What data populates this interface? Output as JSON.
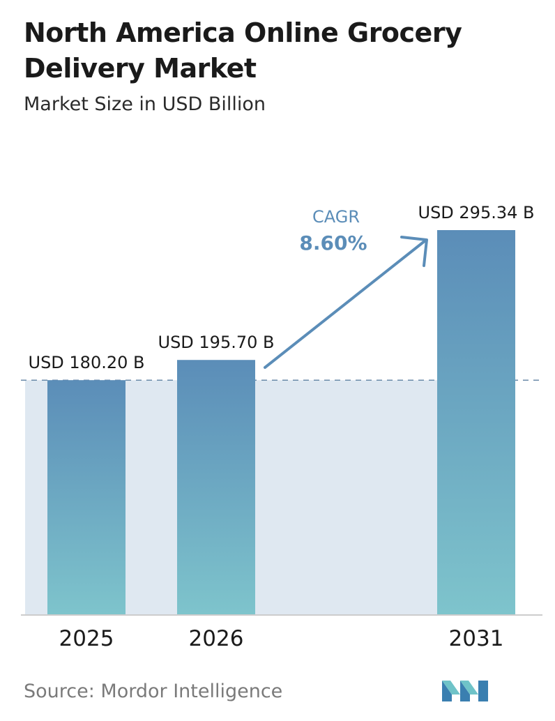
{
  "header": {
    "title": "North America Online Grocery Delivery Market",
    "subtitle": "Market Size in USD Billion"
  },
  "chart_data": {
    "type": "bar",
    "categories": [
      "2025",
      "2026",
      "2031"
    ],
    "values": [
      180.2,
      195.7,
      295.34
    ],
    "value_labels": [
      "USD 180.20 B",
      "USD 195.70 B",
      "USD 295.34 B"
    ],
    "cagr_label": "CAGR",
    "cagr_value": "8.60%",
    "reference_line_value": 180.2,
    "bar_color_top": "#5b8db8",
    "bar_color_bottom": "#7ec4cc",
    "band_color": "#dfe8f1",
    "arrow_color": "#5b8db8",
    "grid": false,
    "legend": "none"
  },
  "footer": {
    "source": "Source:  Mordor Intelligence",
    "logo_icon": "mordor-intelligence-logo-icon"
  }
}
